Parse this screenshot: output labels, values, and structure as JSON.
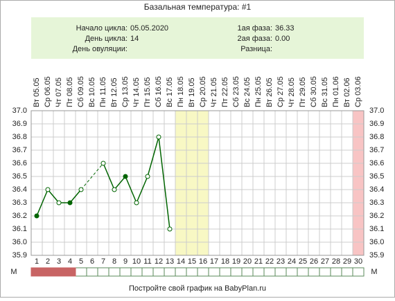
{
  "chart_data": {
    "type": "line",
    "title": "Базальная температура: #1",
    "info": {
      "left": [
        {
          "label": "Начало цикла:",
          "value": "05.05.2020"
        },
        {
          "label": "День цикла:",
          "value": "14"
        },
        {
          "label": "День овуляции:"
        }
      ],
      "right": [
        {
          "label": "1ая фаза:",
          "value": "36.33"
        },
        {
          "label": "2ая фаза:",
          "value": "0.00"
        },
        {
          "label": "Разница:"
        }
      ]
    },
    "categories": [
      "1",
      "2",
      "3",
      "4",
      "5",
      "6",
      "7",
      "8",
      "9",
      "10",
      "11",
      "12",
      "13",
      "14",
      "15",
      "16",
      "17",
      "18",
      "19",
      "20",
      "21",
      "22",
      "23",
      "24",
      "25",
      "26",
      "27",
      "28",
      "29",
      "30"
    ],
    "dates": [
      "Вт 05.05",
      "Ср 06.05",
      "Чт 07.05",
      "Пт 08.05",
      "Сб 09.05",
      "Вс 10.05",
      "Пн 11.05",
      "Вт 12.05",
      "Ср 13.05",
      "Чт 14.05",
      "Пт 15.05",
      "Сб 16.05",
      "Вс 17.05",
      "Пн 18.05",
      "Вт 19.05",
      "Ср 20.05",
      "Чт 21.05",
      "Пт 22.05",
      "Сб 23.05",
      "Вс 24.05",
      "Пн 25.05",
      "Вт 26.05",
      "Ср 27.05",
      "Чт 28.05",
      "Пт 29.05",
      "Сб 30.05",
      "Вс 31.05",
      "Пн 01.06",
      "Вт 02.06",
      "Ср 03.06"
    ],
    "series": [
      {
        "color": "#006400",
        "values": [
          36.2,
          36.4,
          36.3,
          36.3,
          36.4,
          null,
          36.6,
          36.4,
          36.5,
          36.3,
          36.5,
          36.8,
          36.1,
          null,
          null,
          null,
          null,
          null,
          null,
          null,
          null,
          null,
          null,
          null,
          null,
          null,
          null,
          null,
          null,
          null
        ],
        "marker_filled": [
          true,
          false,
          false,
          true,
          false,
          false,
          false,
          false,
          true,
          false,
          false,
          false,
          false,
          false,
          false,
          false,
          false,
          false,
          false,
          false,
          false,
          false,
          false,
          false,
          false,
          false,
          false,
          false,
          false,
          false
        ]
      }
    ],
    "ylim": [
      35.9,
      37.0
    ],
    "yticks": [
      {
        "value": 37.0,
        "label": "37.0"
      },
      36.9,
      36.8,
      36.7,
      36.6,
      36.5,
      36.4,
      36.3,
      36.2,
      36.1,
      {
        "value": 36.0,
        "label": "36.0"
      },
      35.9
    ],
    "grid": true,
    "highlights": [
      {
        "from": 14,
        "to": 16,
        "color": "#f8f8c4"
      },
      {
        "from": 30,
        "to": 30,
        "color": "#f8c4c4"
      }
    ],
    "m_label": "М",
    "m_days": [
      1,
      2,
      3,
      4
    ],
    "m_color": "#c86464",
    "footer": "Постройте свой график на BabyPlan.ru"
  }
}
